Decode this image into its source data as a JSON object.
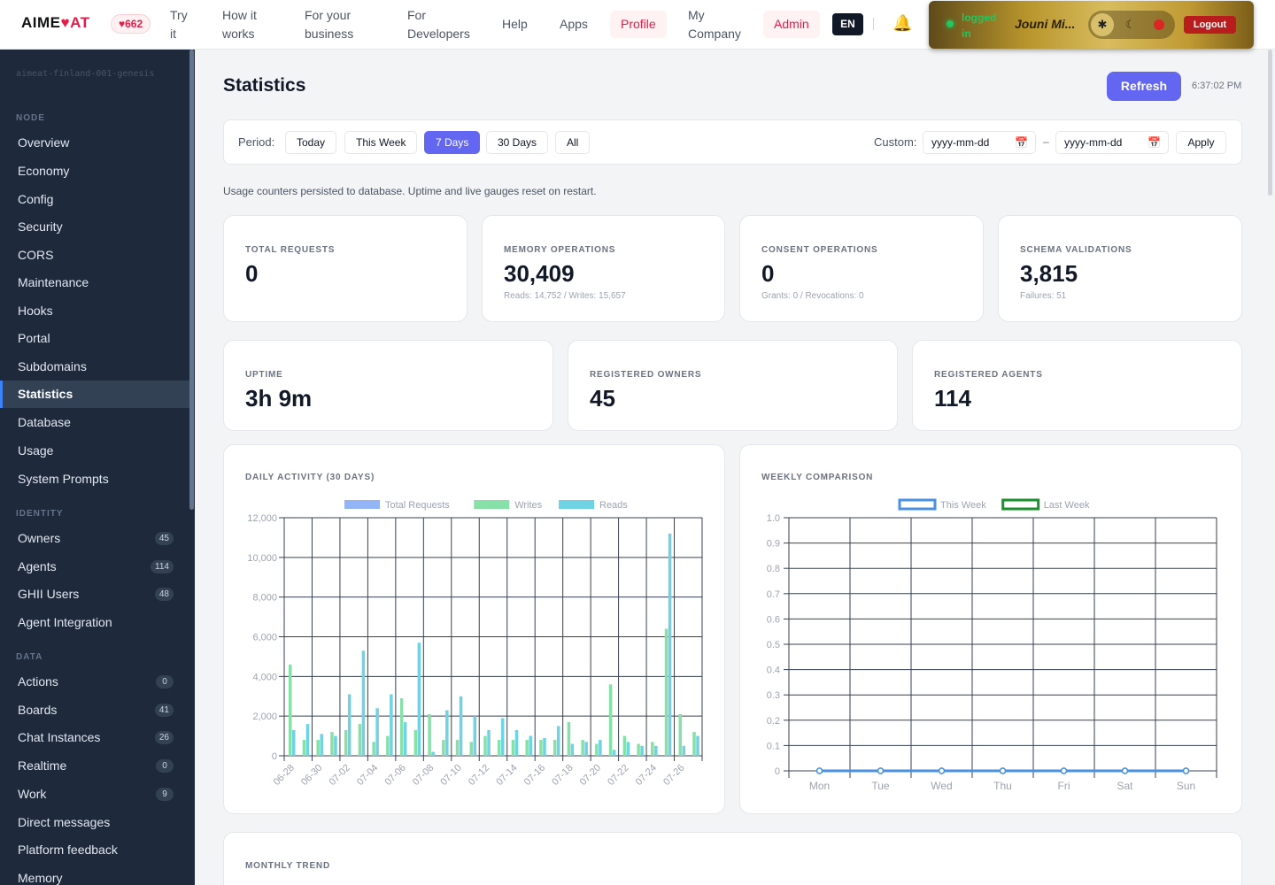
{
  "brand": {
    "name_left": "AIME",
    "heart": "♥",
    "name_right": "AT",
    "likes": "♥662"
  },
  "nav": {
    "try_it": "Try it",
    "how_it_works": "How it works",
    "for_business": "For your business",
    "for_developers": "For Developers",
    "help": "Help",
    "apps": "Apps",
    "profile": "Profile",
    "my_company": "My Company",
    "admin": "Admin",
    "lang": "EN",
    "status": "logged in",
    "user": "Jouni Mi...",
    "logout": "Logout"
  },
  "sidebar": {
    "node_id": "aimeat-finland-001-genesis",
    "sections": {
      "node": "NODE",
      "identity": "IDENTITY",
      "data": "DATA"
    },
    "node_items": [
      "Overview",
      "Economy",
      "Config",
      "Security",
      "CORS",
      "Maintenance",
      "Hooks",
      "Portal",
      "Subdomains",
      "Statistics",
      "Database",
      "Usage",
      "System Prompts"
    ],
    "identity_items": [
      {
        "label": "Owners",
        "count": "45"
      },
      {
        "label": "Agents",
        "count": "114"
      },
      {
        "label": "GHII Users",
        "count": "48"
      },
      {
        "label": "Agent Integration",
        "count": ""
      }
    ],
    "data_items": [
      {
        "label": "Actions",
        "count": "0"
      },
      {
        "label": "Boards",
        "count": "41"
      },
      {
        "label": "Chat Instances",
        "count": "26"
      },
      {
        "label": "Realtime",
        "count": "0"
      },
      {
        "label": "Work",
        "count": "9"
      },
      {
        "label": "Direct messages",
        "count": ""
      },
      {
        "label": "Platform feedback",
        "count": ""
      },
      {
        "label": "Memory",
        "count": ""
      }
    ],
    "active": "Statistics"
  },
  "page": {
    "title": "Statistics",
    "refresh": "Refresh",
    "time": "6:37:02 PM",
    "period_label": "Period:",
    "periods": [
      "Today",
      "This Week",
      "7 Days",
      "30 Days",
      "All"
    ],
    "active_period": "7 Days",
    "custom_label": "Custom:",
    "date_from_placeholder": "yyyy-mm-dd",
    "date_to_placeholder": "yyyy-mm-dd",
    "dash": "–",
    "apply": "Apply",
    "note": "Usage counters persisted to database. Uptime and live gauges reset on restart."
  },
  "stats": {
    "total_requests": {
      "label": "TOTAL REQUESTS",
      "value": "0"
    },
    "memory_ops": {
      "label": "MEMORY OPERATIONS",
      "value": "30,409",
      "sub": "Reads: 14,752 / Writes: 15,657"
    },
    "consent_ops": {
      "label": "CONSENT OPERATIONS",
      "value": "0",
      "sub": "Grants: 0 / Revocations: 0"
    },
    "schema_validations": {
      "label": "SCHEMA VALIDATIONS",
      "value": "3,815",
      "sub": "Failures: 51"
    },
    "uptime": {
      "label": "UPTIME",
      "value": "3h 9m"
    },
    "registered_owners": {
      "label": "REGISTERED OWNERS",
      "value": "45"
    },
    "registered_agents": {
      "label": "REGISTERED AGENTS",
      "value": "114"
    }
  },
  "monthly_title": "MONTHLY TREND",
  "chart_data": [
    {
      "type": "bar",
      "title": "DAILY ACTIVITY (30 DAYS)",
      "legend_position": "top",
      "grid": true,
      "ylim": [
        0,
        12000
      ],
      "yticks": [
        0,
        2000,
        4000,
        6000,
        8000,
        10000,
        12000
      ],
      "ytick_labels": [
        "0",
        "2,000",
        "4,000",
        "6,000",
        "8,000",
        "10,000",
        "12,000"
      ],
      "categories": [
        "06-28",
        "06-29",
        "06-30",
        "07-01",
        "07-02",
        "07-03",
        "07-04",
        "07-05",
        "07-06",
        "07-07",
        "07-08",
        "07-09",
        "07-10",
        "07-11",
        "07-12",
        "07-13",
        "07-14",
        "07-15",
        "07-16",
        "07-17",
        "07-18",
        "07-19",
        "07-20",
        "07-21",
        "07-22",
        "07-23",
        "07-24",
        "07-25",
        "07-26",
        "07-27"
      ],
      "xtick_labels": [
        "06-28",
        "06-30",
        "07-02",
        "07-04",
        "07-06",
        "07-08",
        "07-10",
        "07-12",
        "07-14",
        "07-16",
        "07-18",
        "07-20",
        "07-22",
        "07-24",
        "07-26"
      ],
      "series": [
        {
          "name": "Total Requests",
          "color": "#93b5f5",
          "values": [
            0,
            0,
            0,
            0,
            0,
            0,
            0,
            0,
            0,
            0,
            0,
            0,
            0,
            0,
            0,
            0,
            0,
            0,
            0,
            0,
            0,
            0,
            0,
            0,
            0,
            0,
            0,
            0,
            0,
            0
          ]
        },
        {
          "name": "Writes",
          "color": "#86e0a8",
          "values": [
            4600,
            800,
            800,
            1200,
            1300,
            1600,
            700,
            1000,
            2900,
            1300,
            2100,
            800,
            800,
            700,
            1000,
            800,
            800,
            800,
            800,
            800,
            1700,
            800,
            600,
            3600,
            1000,
            600,
            700,
            6400,
            2100,
            1200
          ]
        },
        {
          "name": "Reads",
          "color": "#6fd3e3",
          "values": [
            1300,
            1600,
            1100,
            1000,
            3100,
            5300,
            2400,
            3100,
            1700,
            5700,
            200,
            2300,
            3000,
            2000,
            1300,
            1900,
            1300,
            1000,
            900,
            1500,
            600,
            700,
            800,
            300,
            700,
            500,
            500,
            11200,
            500,
            1000
          ]
        }
      ]
    },
    {
      "type": "line",
      "title": "WEEKLY COMPARISON",
      "legend_position": "top",
      "grid": true,
      "ylim": [
        0,
        1.0
      ],
      "yticks": [
        0,
        0.1,
        0.2,
        0.3,
        0.4,
        0.5,
        0.6,
        0.7,
        0.8,
        0.9,
        1.0
      ],
      "ytick_labels": [
        "0",
        "0.1",
        "0.2",
        "0.3",
        "0.4",
        "0.5",
        "0.6",
        "0.7",
        "0.8",
        "0.9",
        "1.0"
      ],
      "x": [
        "Mon",
        "Tue",
        "Wed",
        "Thu",
        "Fri",
        "Sat",
        "Sun"
      ],
      "series": [
        {
          "name": "This Week",
          "color": "#4a90e2",
          "values": [
            0,
            0,
            0,
            0,
            0,
            0,
            0
          ]
        },
        {
          "name": "Last Week",
          "color": "#1a8f2e",
          "values": [
            0,
            0,
            0,
            0,
            0,
            0,
            0
          ]
        }
      ]
    }
  ]
}
